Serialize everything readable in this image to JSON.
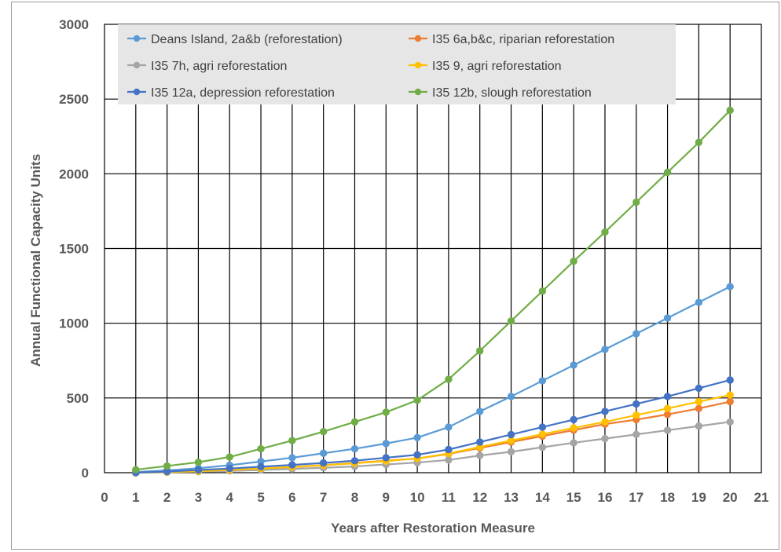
{
  "chart_data": {
    "type": "line",
    "title": "",
    "xlabel": "Years after Restoration Measure",
    "ylabel": "Annual Functional Capacity Units",
    "xlim": [
      0,
      21
    ],
    "ylim": [
      0,
      3000
    ],
    "xticks": [
      0,
      1,
      2,
      3,
      4,
      5,
      6,
      7,
      8,
      9,
      10,
      11,
      12,
      13,
      14,
      15,
      16,
      17,
      18,
      19,
      20,
      21
    ],
    "yticks": [
      0,
      500,
      1000,
      1500,
      2000,
      2500,
      3000
    ],
    "grid": true,
    "legend_position": "top",
    "x": [
      1,
      2,
      3,
      4,
      5,
      6,
      7,
      8,
      9,
      10,
      11,
      12,
      13,
      14,
      15,
      16,
      17,
      18,
      19,
      20
    ],
    "series": [
      {
        "name": "Deans Island, 2a&b (reforestation)",
        "color": "#5b9bd5",
        "values": [
          5,
          15,
          30,
          50,
          75,
          100,
          130,
          160,
          195,
          235,
          305,
          410,
          510,
          615,
          720,
          825,
          930,
          1035,
          1140,
          1245
        ]
      },
      {
        "name": "I35 6a,b&c, riparian reforestation",
        "color": "#ed7d31",
        "values": [
          0,
          5,
          10,
          18,
          27,
          37,
          50,
          65,
          80,
          95,
          125,
          165,
          205,
          245,
          285,
          325,
          355,
          390,
          430,
          475
        ]
      },
      {
        "name": "I35 7h, agri reforestation",
        "color": "#a5a5a5",
        "values": [
          0,
          3,
          7,
          12,
          18,
          25,
          33,
          42,
          55,
          68,
          85,
          115,
          140,
          170,
          200,
          228,
          256,
          284,
          312,
          340
        ]
      },
      {
        "name": "I35 9, agri reforestation",
        "color": "#ffc000",
        "values": [
          0,
          5,
          10,
          18,
          28,
          38,
          50,
          63,
          78,
          95,
          128,
          172,
          215,
          258,
          300,
          340,
          385,
          430,
          475,
          520
        ]
      },
      {
        "name": "I35 12a, depression reforestation",
        "color": "#4472c4",
        "values": [
          0,
          8,
          18,
          28,
          40,
          52,
          65,
          80,
          100,
          120,
          155,
          205,
          255,
          305,
          355,
          410,
          460,
          510,
          565,
          620
        ]
      },
      {
        "name": "I35 12b, slough reforestation",
        "color": "#70ad47",
        "values": [
          20,
          45,
          70,
          105,
          160,
          215,
          275,
          340,
          405,
          485,
          625,
          815,
          1015,
          1215,
          1415,
          1610,
          1810,
          2010,
          2210,
          2425
        ]
      }
    ]
  }
}
